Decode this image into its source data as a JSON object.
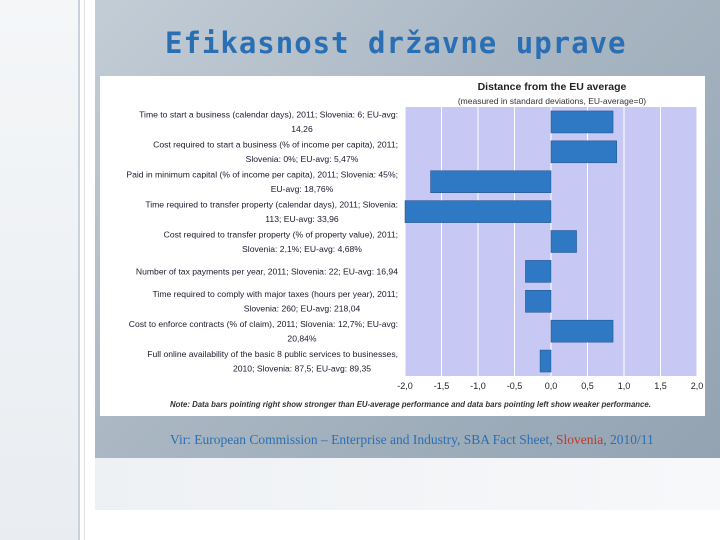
{
  "slide": {
    "title": "Efikasnost državne uprave",
    "source_prefix": "Vir: European Commission – Enterprise and Industry, SBA Fact Sheet, ",
    "source_highlight": "Slovenia",
    "source_suffix": ", 2010/11"
  },
  "colors": {
    "bar": "#2f78c4",
    "plot_bg": "#c8c8f5",
    "grid": "#ffffff",
    "title": "#2a6fb3"
  },
  "chart_data": {
    "type": "bar",
    "orientation": "horizontal",
    "title": "Distance from the EU average",
    "subtitle": "(measured in standard deviations, EU-average=0)",
    "note": "Note: Data bars pointing right show stronger than EU-average performance and data bars pointing left show weaker performance.",
    "xlim": [
      -2.0,
      2.0
    ],
    "x_ticks": [
      "-2,0",
      "-1,5",
      "-1,0",
      "-0,5",
      "0,0",
      "0,5",
      "1,0",
      "1,5",
      "2,0"
    ],
    "x_tick_values": [
      -2.0,
      -1.5,
      -1.0,
      -0.5,
      0.0,
      0.5,
      1.0,
      1.5,
      2.0
    ],
    "grid": true,
    "categories": [
      [
        "Time to start a business (calendar days), 2011; Slovenia: 6; EU-avg:",
        "14,26"
      ],
      [
        "Cost required to start a business (% of income per capita), 2011;",
        "Slovenia: 0%; EU-avg: 5,47%"
      ],
      [
        "Paid in minimum capital (% of income per capita), 2011; Slovenia: 45%;",
        "EU-avg: 18,76%"
      ],
      [
        "Time required to transfer property (calendar days), 2011; Slovenia:",
        "113; EU-avg: 33,96"
      ],
      [
        "Cost required to transfer property (% of property value), 2011;",
        "Slovenia: 2,1%; EU-avg: 4,68%"
      ],
      [
        "Number of tax payments per year, 2011; Slovenia: 22; EU-avg: 16,94"
      ],
      [
        "Time required to comply with major taxes (hours per year), 2011;",
        "Slovenia: 260; EU-avg: 218,04"
      ],
      [
        "Cost to enforce contracts (% of claim), 2011; Slovenia: 12,7%; EU-avg:",
        "20,84%"
      ],
      [
        "Full online availability of the basic 8 public services to businesses,",
        "2010; Slovenia: 87,5; EU-avg: 89,35"
      ]
    ],
    "values": [
      0.85,
      0.9,
      -1.65,
      -2.0,
      0.35,
      -0.35,
      -0.35,
      0.85,
      -0.15
    ]
  }
}
